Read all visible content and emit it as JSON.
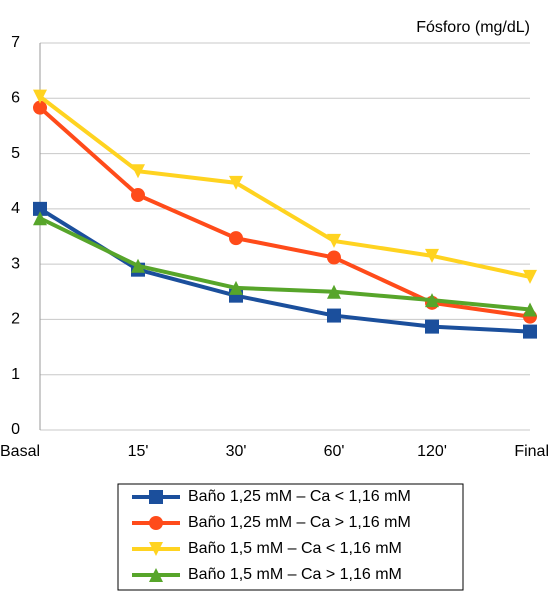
{
  "chart_data": {
    "type": "line",
    "title": "Fósforo (mg/dL)",
    "categories": [
      "Basal",
      "15'",
      "30'",
      "60'",
      "120'",
      "Final"
    ],
    "series": [
      {
        "name": "Baño 1,25 mM – Ca < 1,16 mM",
        "color": "#1b4f9c",
        "marker": "square",
        "values": [
          4.0,
          2.9,
          2.43,
          2.07,
          1.87,
          1.78
        ]
      },
      {
        "name": "Baño 1,25 mM – Ca > 1,16 mM",
        "color": "#ff4b1a",
        "marker": "circle",
        "values": [
          5.83,
          4.25,
          3.47,
          3.12,
          2.3,
          2.05
        ]
      },
      {
        "name": "Baño 1,5 mM – Ca < 1,16 mM",
        "color": "#ffd320",
        "marker": "triangle-down",
        "values": [
          6.03,
          4.68,
          4.47,
          3.42,
          3.15,
          2.77
        ]
      },
      {
        "name": "Baño 1,5 mM – Ca > 1,16 mM",
        "color": "#57a52a",
        "marker": "triangle-up",
        "values": [
          3.83,
          2.97,
          2.57,
          2.5,
          2.35,
          2.18
        ]
      }
    ],
    "ylim": [
      0,
      7
    ],
    "yticks": [
      0,
      1,
      2,
      3,
      4,
      5,
      6,
      7
    ],
    "grid": true
  }
}
